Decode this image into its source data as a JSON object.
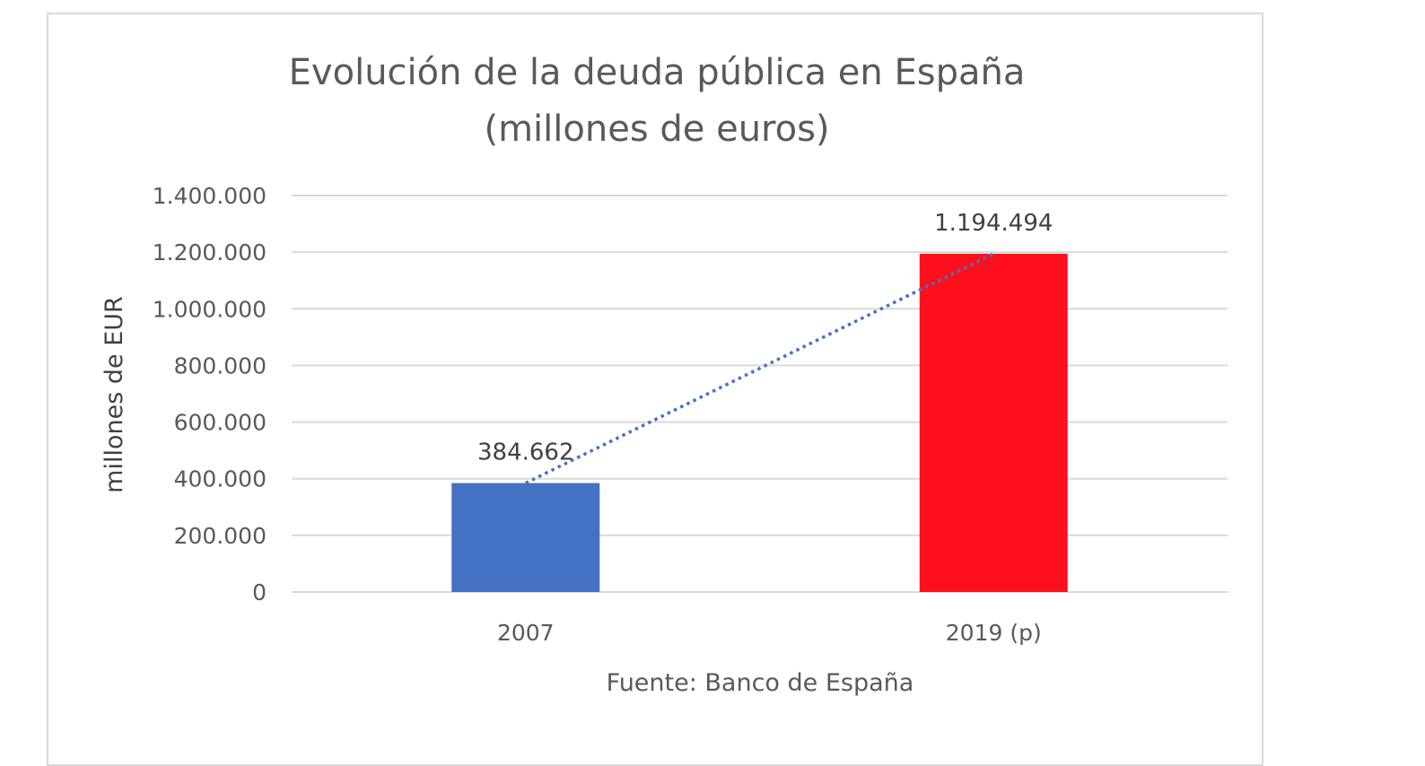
{
  "chart_data": {
    "type": "bar",
    "title": [
      "Evolución de la deuda pública en España",
      "(millones de euros)"
    ],
    "categories": [
      "2007",
      "2019 (p)"
    ],
    "values": [
      384662,
      1194494
    ],
    "value_labels": [
      "384.662",
      "1.194.494"
    ],
    "bar_colors": [
      "#4472C4",
      "#FF0F1C"
    ],
    "trendline": {
      "style": "dotted",
      "color": "#4472C4"
    },
    "ylabel": "millones de EUR",
    "xlabel": "Fuente: Banco de España",
    "ylim": [
      0,
      1400000
    ],
    "yticks": [
      0,
      200000,
      400000,
      600000,
      800000,
      1000000,
      1200000,
      1400000
    ],
    "ytick_labels": [
      "0",
      "200.000",
      "400.000",
      "600.000",
      "800.000",
      "1.000.000",
      "1.200.000",
      "1.400.000"
    ],
    "grid": true,
    "gridline_color": "#d9d9d9"
  }
}
